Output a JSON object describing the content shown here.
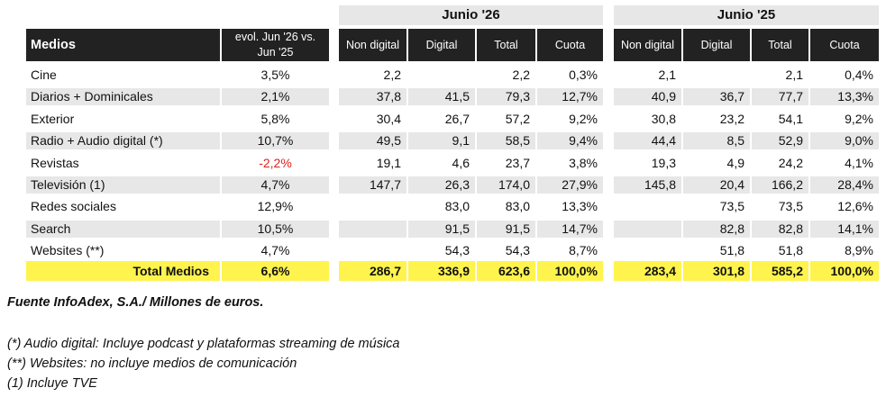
{
  "headers": {
    "medios": "Medios",
    "evol": [
      "evol. Jun '26 vs.",
      "Jun '25"
    ],
    "group_a": "Junio '26",
    "group_b": "Junio '25",
    "cols": [
      "Non digital",
      "Digital",
      "Total",
      "Cuota"
    ]
  },
  "rows": [
    {
      "medio": "Cine",
      "evol": "3,5%",
      "a": [
        "2,2",
        "",
        "2,2",
        "0,3%"
      ],
      "b": [
        "2,1",
        "",
        "2,1",
        "0,4%"
      ]
    },
    {
      "medio": "Diarios + Dominicales",
      "evol": "2,1%",
      "a": [
        "37,8",
        "41,5",
        "79,3",
        "12,7%"
      ],
      "b": [
        "40,9",
        "36,7",
        "77,7",
        "13,3%"
      ]
    },
    {
      "medio": "Exterior",
      "evol": "5,8%",
      "a": [
        "30,4",
        "26,7",
        "57,2",
        "9,2%"
      ],
      "b": [
        "30,8",
        "23,2",
        "54,1",
        "9,2%"
      ]
    },
    {
      "medio": "Radio + Audio digital (*)",
      "evol": "10,7%",
      "a": [
        "49,5",
        "9,1",
        "58,5",
        "9,4%"
      ],
      "b": [
        "44,4",
        "8,5",
        "52,9",
        "9,0%"
      ]
    },
    {
      "medio": "Revistas",
      "evol": "-2,2%",
      "negative": true,
      "a": [
        "19,1",
        "4,6",
        "23,7",
        "3,8%"
      ],
      "b": [
        "19,3",
        "4,9",
        "24,2",
        "4,1%"
      ]
    },
    {
      "medio": "Televisión (1)",
      "evol": "4,7%",
      "a": [
        "147,7",
        "26,3",
        "174,0",
        "27,9%"
      ],
      "b": [
        "145,8",
        "20,4",
        "166,2",
        "28,4%"
      ]
    },
    {
      "medio": "Redes sociales",
      "evol": "12,9%",
      "a": [
        "",
        "83,0",
        "83,0",
        "13,3%"
      ],
      "b": [
        "",
        "73,5",
        "73,5",
        "12,6%"
      ]
    },
    {
      "medio": "Search",
      "evol": "10,5%",
      "a": [
        "",
        "91,5",
        "91,5",
        "14,7%"
      ],
      "b": [
        "",
        "82,8",
        "82,8",
        "14,1%"
      ]
    },
    {
      "medio": "Websites (**)",
      "evol": "4,7%",
      "a": [
        "",
        "54,3",
        "54,3",
        "8,7%"
      ],
      "b": [
        "",
        "51,8",
        "51,8",
        "8,9%"
      ]
    }
  ],
  "total": {
    "medio": "Total Medios",
    "evol": "6,6%",
    "a": [
      "286,7",
      "336,9",
      "623,6",
      "100,0%"
    ],
    "b": [
      "283,4",
      "301,8",
      "585,2",
      "100,0%"
    ]
  },
  "footer": {
    "source": "Fuente InfoAdex, S.A./ Millones de euros.",
    "notes": [
      "(*) Audio digital: Incluye podcast y plataformas streaming de música",
      "(**) Websites: no incluye medios de comunicación",
      "(1) Incluye TVE"
    ]
  },
  "colors": {
    "header_dark": "#222222",
    "shade": "#e7e7e7",
    "total_yellow": "#fff34d",
    "negative": "#e0201b"
  }
}
